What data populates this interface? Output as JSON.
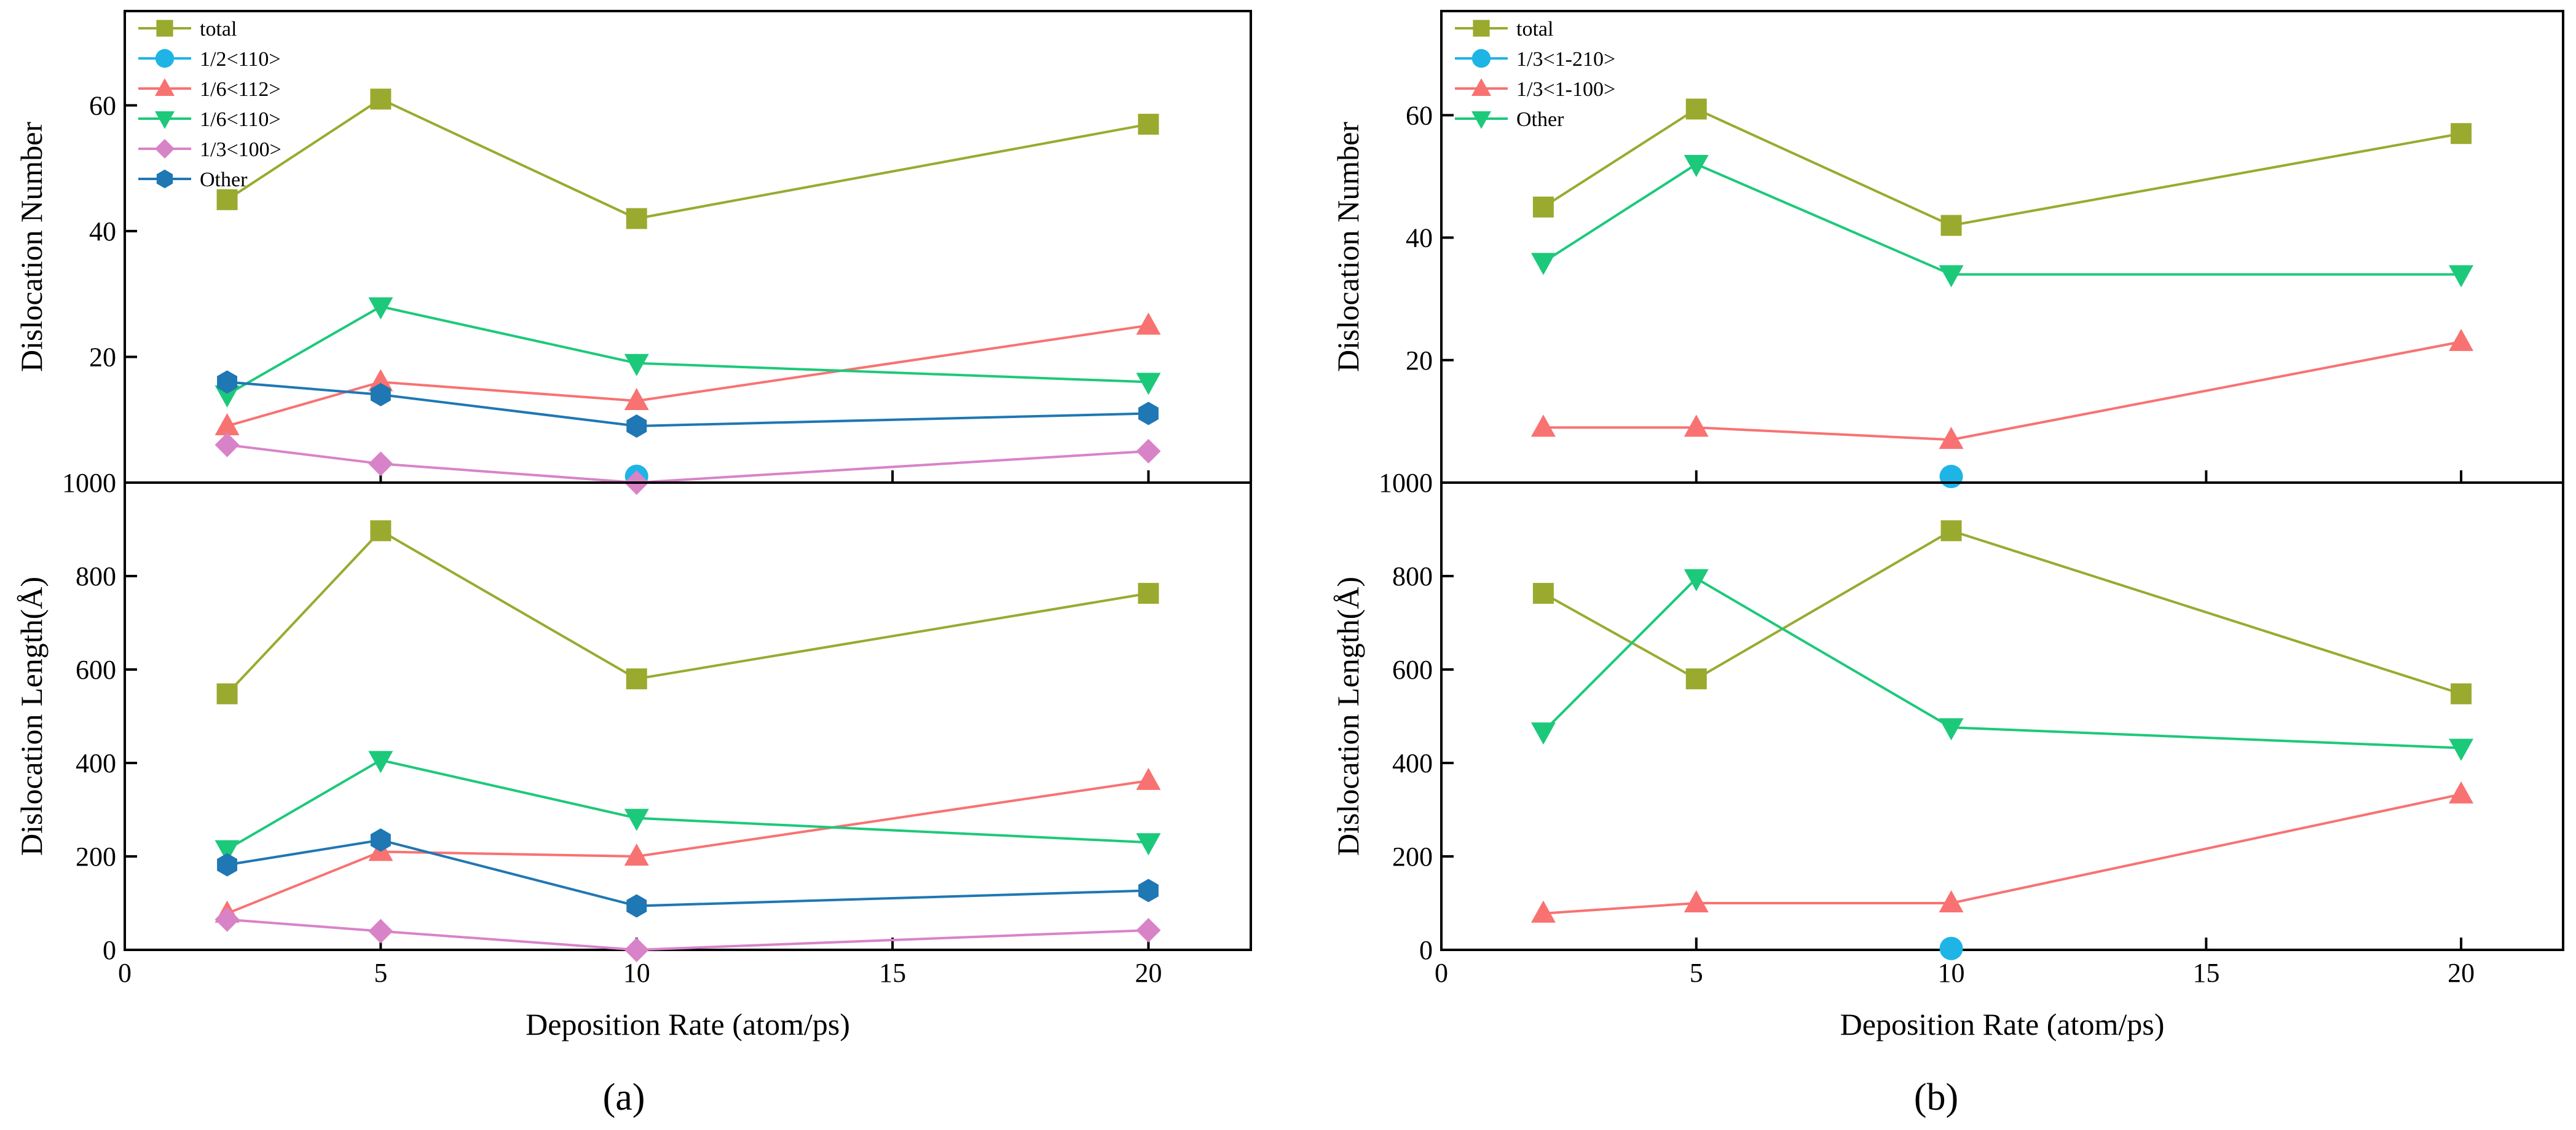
{
  "chart_data": [
    {
      "id": "a",
      "type": "line",
      "panel_label": "(a)",
      "x_range": [
        0,
        22
      ],
      "x_ticks": [
        0,
        5,
        10,
        15,
        20
      ],
      "xlabel": "Deposition Rate (atom/ps)",
      "subplots": [
        {
          "ylabel": "Dislocation Number",
          "y_range": [
            0,
            75
          ],
          "y_ticks": [
            20,
            40,
            60
          ],
          "legend_position": "top-left",
          "series": [
            {
              "name": "total",
              "color": "#9aaa2f",
              "marker": "square",
              "x": [
                2,
                5,
                10,
                20
              ],
              "values": [
                45,
                61,
                42,
                57
              ]
            },
            {
              "name": "1/2<110>",
              "color": "#1fb4e6",
              "marker": "circle",
              "x": [
                10
              ],
              "values": [
                1
              ]
            },
            {
              "name": "1/6<112>",
              "color": "#f87272",
              "marker": "triangle-up",
              "x": [
                2,
                5,
                10,
                20
              ],
              "values": [
                9,
                16,
                13,
                25
              ]
            },
            {
              "name": "1/6<110>",
              "color": "#1cc97a",
              "marker": "triangle-down",
              "x": [
                2,
                5,
                10,
                20
              ],
              "values": [
                14,
                28,
                19,
                16
              ]
            },
            {
              "name": "1/3<100>",
              "color": "#d883c8",
              "marker": "diamond",
              "x": [
                2,
                5,
                10,
                20
              ],
              "values": [
                6,
                3,
                0,
                5
              ]
            },
            {
              "name": "Other",
              "color": "#1f77b4",
              "marker": "hexagon",
              "x": [
                2,
                5,
                10,
                20
              ],
              "values": [
                16,
                14,
                9,
                11
              ]
            }
          ]
        },
        {
          "ylabel": "Dislocation Length(Å)",
          "y_range": [
            0,
            1000
          ],
          "y_ticks": [
            0,
            200,
            400,
            600,
            800,
            1000
          ],
          "series": [
            {
              "name": "total",
              "color": "#9aaa2f",
              "marker": "square",
              "x": [
                2,
                5,
                10,
                20
              ],
              "values": [
                548,
                897,
                580,
                763
              ]
            },
            {
              "name": "1/2<110>",
              "color": "#1fb4e6",
              "marker": "circle",
              "x": [],
              "values": []
            },
            {
              "name": "1/6<112>",
              "color": "#f87272",
              "marker": "triangle-up",
              "x": [
                2,
                5,
                10,
                20
              ],
              "values": [
                78,
                210,
                200,
                362
              ]
            },
            {
              "name": "1/6<110>",
              "color": "#1cc97a",
              "marker": "triangle-down",
              "x": [
                2,
                5,
                10,
                20
              ],
              "values": [
                215,
                406,
                282,
                230
              ]
            },
            {
              "name": "1/3<100>",
              "color": "#d883c8",
              "marker": "diamond",
              "x": [
                2,
                5,
                10,
                20
              ],
              "values": [
                65,
                40,
                0,
                42
              ]
            },
            {
              "name": "Other",
              "color": "#1f77b4",
              "marker": "hexagon",
              "x": [
                2,
                5,
                10,
                20
              ],
              "values": [
                182,
                235,
                94,
                127
              ]
            }
          ]
        }
      ]
    },
    {
      "id": "b",
      "type": "line",
      "panel_label": "(b)",
      "x_range": [
        0,
        22
      ],
      "x_ticks": [
        0,
        5,
        10,
        15,
        20
      ],
      "xlabel": "Deposition Rate (atom/ps)",
      "subplots": [
        {
          "ylabel": "Dislocation Number",
          "y_range": [
            0,
            77
          ],
          "y_ticks": [
            20,
            40,
            60
          ],
          "legend_position": "top-left",
          "series": [
            {
              "name": "total",
              "color": "#9aaa2f",
              "marker": "square",
              "x": [
                2,
                5,
                10,
                20
              ],
              "values": [
                45,
                61,
                42,
                57
              ]
            },
            {
              "name": "1/3<1-210>",
              "color": "#1fb4e6",
              "marker": "circle",
              "x": [
                10
              ],
              "values": [
                1
              ]
            },
            {
              "name": "1/3<1-100>",
              "color": "#f87272",
              "marker": "triangle-up",
              "x": [
                2,
                5,
                10,
                20
              ],
              "values": [
                9,
                9,
                7,
                23
              ]
            },
            {
              "name": "Other",
              "color": "#1cc97a",
              "marker": "triangle-down",
              "x": [
                2,
                5,
                10,
                20
              ],
              "values": [
                36,
                52,
                34,
                34
              ]
            }
          ]
        },
        {
          "ylabel": "Dislocation Length(Å)",
          "y_range": [
            0,
            1000
          ],
          "y_ticks": [
            0,
            200,
            400,
            600,
            800,
            1000
          ],
          "series": [
            {
              "name": "total",
              "color": "#9aaa2f",
              "marker": "square",
              "x": [
                2,
                5,
                10,
                20
              ],
              "values": [
                763,
                580,
                897,
                548
              ]
            },
            {
              "name": "1/3<1-210>",
              "color": "#1fb4e6",
              "marker": "circle",
              "x": [
                10
              ],
              "values": [
                3
              ]
            },
            {
              "name": "1/3<1-100>",
              "color": "#f87272",
              "marker": "triangle-up",
              "x": [
                2,
                5,
                10,
                20
              ],
              "values": [
                78,
                100,
                100,
                333
              ]
            },
            {
              "name": "Other",
              "color": "#1cc97a",
              "marker": "triangle-down",
              "x": [
                2,
                5,
                10,
                20
              ],
              "values": [
                467,
                795,
                476,
                432
              ]
            }
          ]
        }
      ]
    }
  ]
}
